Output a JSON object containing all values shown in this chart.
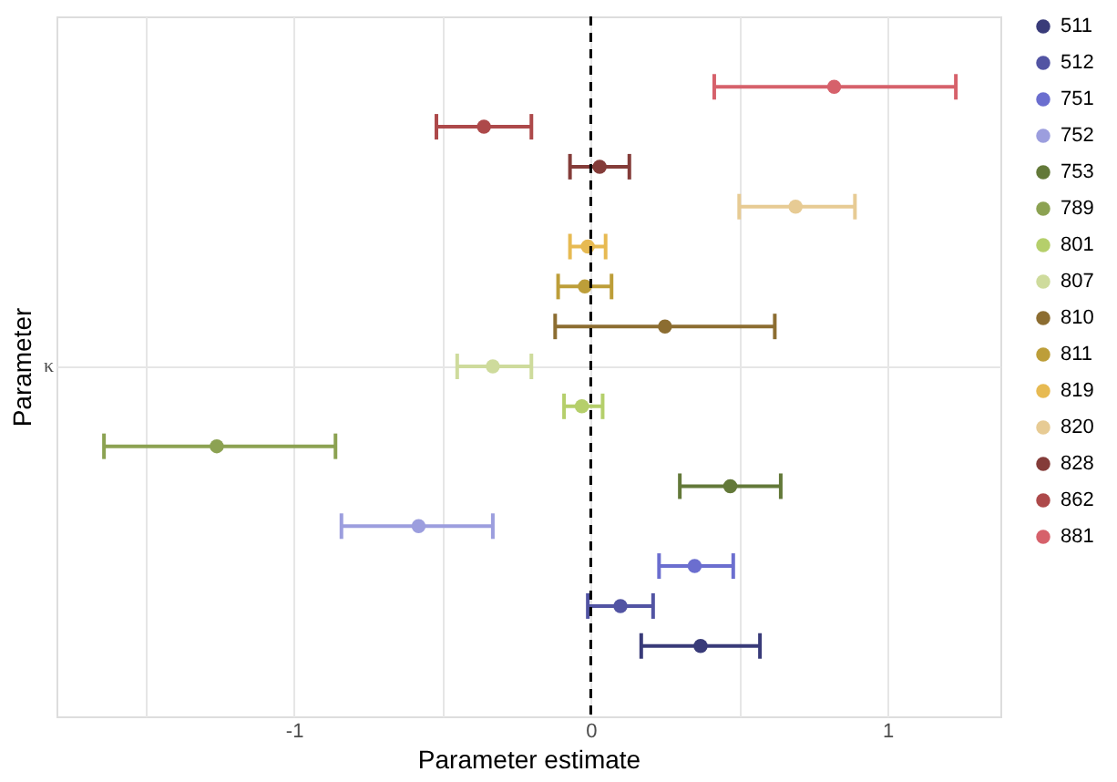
{
  "chart_data": {
    "type": "scatter",
    "orientation": "horizontal",
    "xlabel": "Parameter estimate",
    "ylabel": "Parameter",
    "categories": [
      "κ"
    ],
    "xlim": [
      -1.8,
      1.38
    ],
    "xticks": [
      {
        "value": -1.5,
        "label": null
      },
      -1,
      {
        "value": -0.5,
        "label": null
      },
      0,
      {
        "value": 0.5,
        "label": null
      },
      1
    ],
    "grid": true,
    "legend": "right",
    "marker": "circle",
    "ref_lines": [
      {
        "axis": "x",
        "value": 0,
        "color": "#000000",
        "line_style": "dashed"
      }
    ],
    "series": [
      {
        "name": "511",
        "color": "#393b79",
        "values": [
          0.37
        ],
        "errors": [
          [
            0.17,
            0.57
          ]
        ]
      },
      {
        "name": "512",
        "color": "#5254a3",
        "values": [
          0.1
        ],
        "errors": [
          [
            -0.01,
            0.21
          ]
        ]
      },
      {
        "name": "751",
        "color": "#6b6ecf",
        "values": [
          0.35
        ],
        "errors": [
          [
            0.23,
            0.48
          ]
        ]
      },
      {
        "name": "752",
        "color": "#9c9ede",
        "values": [
          -0.58
        ],
        "errors": [
          [
            -0.84,
            -0.33
          ]
        ]
      },
      {
        "name": "753",
        "color": "#637939",
        "values": [
          0.47
        ],
        "errors": [
          [
            0.3,
            0.64
          ]
        ]
      },
      {
        "name": "789",
        "color": "#8ca252",
        "values": [
          -1.26
        ],
        "errors": [
          [
            -1.64,
            -0.86
          ]
        ]
      },
      {
        "name": "801",
        "color": "#b5cf6b",
        "values": [
          -0.03
        ],
        "errors": [
          [
            -0.09,
            0.04
          ]
        ]
      },
      {
        "name": "807",
        "color": "#cedb9c",
        "values": [
          -0.33
        ],
        "errors": [
          [
            -0.45,
            -0.2
          ]
        ]
      },
      {
        "name": "810",
        "color": "#8c6d31",
        "values": [
          0.25
        ],
        "errors": [
          [
            -0.12,
            0.62
          ]
        ]
      },
      {
        "name": "811",
        "color": "#bd9e39",
        "values": [
          -0.02
        ],
        "errors": [
          [
            -0.11,
            0.07
          ]
        ]
      },
      {
        "name": "819",
        "color": "#e7ba52",
        "values": [
          -0.01
        ],
        "errors": [
          [
            -0.07,
            0.05
          ]
        ]
      },
      {
        "name": "820",
        "color": "#e7cb94",
        "values": [
          0.69
        ],
        "errors": [
          [
            0.5,
            0.89
          ]
        ]
      },
      {
        "name": "828",
        "color": "#843c39",
        "values": [
          0.03
        ],
        "errors": [
          [
            -0.07,
            0.13
          ]
        ]
      },
      {
        "name": "862",
        "color": "#ad494a",
        "values": [
          -0.36
        ],
        "errors": [
          [
            -0.52,
            -0.2
          ]
        ]
      },
      {
        "name": "881",
        "color": "#d6616b",
        "values": [
          0.82
        ],
        "errors": [
          [
            0.416,
            1.23
          ]
        ]
      }
    ]
  }
}
